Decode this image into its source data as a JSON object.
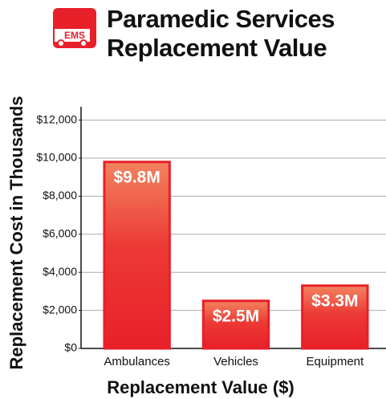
{
  "icon_text": "EMS",
  "chart_data": {
    "type": "bar",
    "title": "Paramedic Services Replacement Value",
    "xlabel": "Replacement Value ($)",
    "ylabel": "Replacement Cost in Thousands",
    "categories": [
      "Ambulances",
      "Vehicles",
      "Equipment"
    ],
    "values": [
      9800,
      2500,
      3300
    ],
    "value_labels": [
      "$9.8M",
      "$2.5M",
      "$3.3M"
    ],
    "color": "#e8202a",
    "ylim": [
      0,
      12700
    ],
    "yticks": [
      {
        "value": 0,
        "label": "$0"
      },
      {
        "value": 2000,
        "label": "$2,000"
      },
      {
        "value": 4000,
        "label": "$4,000"
      },
      {
        "value": 6000,
        "label": "$6,000"
      },
      {
        "value": 8000,
        "label": "$8,000"
      },
      {
        "value": 10000,
        "label": "$10,000"
      },
      {
        "value": 12000,
        "label": "$12,000"
      }
    ],
    "grid": true
  }
}
